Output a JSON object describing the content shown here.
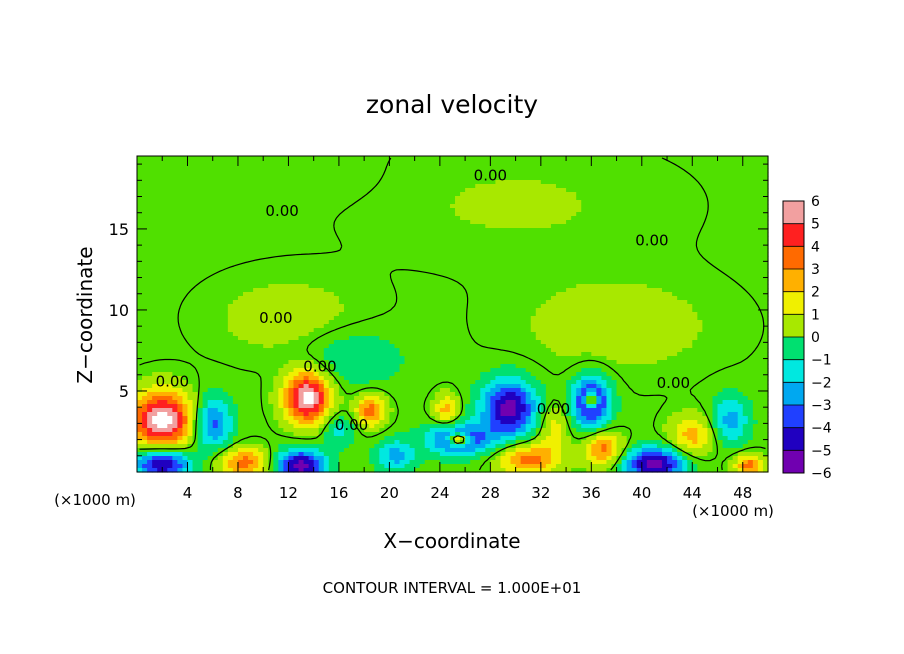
{
  "chart_data": {
    "type": "heatmap",
    "title": "zonal velocity",
    "xlabel": "X−coordinate",
    "ylabel": "Z−coordinate",
    "x_unit_left": "(×1000 m)",
    "x_unit_right": "(×1000 m)",
    "footer": "CONTOUR INTERVAL = 1.000E+01",
    "xlim": [
      0,
      50
    ],
    "ylim": [
      0,
      19.5
    ],
    "x_ticks": [
      4,
      8,
      12,
      16,
      20,
      24,
      28,
      32,
      36,
      40,
      44,
      48
    ],
    "x_tick_labels": [
      "4",
      "8",
      "12",
      "16",
      "20",
      "24",
      "28",
      "32",
      "36",
      "40",
      "44",
      "48"
    ],
    "y_ticks": [
      5,
      10,
      15
    ],
    "y_tick_labels": [
      "5",
      "10",
      "15"
    ],
    "colorbar": {
      "min": -6,
      "max": 6,
      "tick_labels": [
        "6",
        "5",
        "4",
        "3",
        "2",
        "1",
        "0",
        "−1",
        "−2",
        "−3",
        "−4",
        "−5",
        "−6"
      ],
      "colors": [
        "#f2a0a0",
        "#ff2020",
        "#ff6a00",
        "#ffb000",
        "#f0f000",
        "#a8e800",
        "#50e000",
        "#00e070",
        "#00e8e0",
        "#00a8f0",
        "#2040ff",
        "#2000c0",
        "#7000b0"
      ]
    },
    "contour_labels": [
      {
        "x": 28.0,
        "y": 18.3,
        "text": "0.00"
      },
      {
        "x": 11.5,
        "y": 16.1,
        "text": "0.00"
      },
      {
        "x": 40.8,
        "y": 14.3,
        "text": "0.00"
      },
      {
        "x": 11.0,
        "y": 9.5,
        "text": "0.00"
      },
      {
        "x": 2.8,
        "y": 5.6,
        "text": "0.00"
      },
      {
        "x": 14.5,
        "y": 6.5,
        "text": "0.00"
      },
      {
        "x": 17.0,
        "y": 2.9,
        "text": "0.00"
      },
      {
        "x": 33.0,
        "y": 3.9,
        "text": "0.00"
      },
      {
        "x": 42.5,
        "y": 5.5,
        "text": "0.00"
      }
    ],
    "field_features": [
      {
        "x": 2.0,
        "y": 3.2,
        "rx": 2.4,
        "ry": 1.8,
        "v": 7
      },
      {
        "x": 2.0,
        "y": 0.5,
        "rx": 2.2,
        "ry": 1.0,
        "v": -6
      },
      {
        "x": 13.5,
        "y": 4.6,
        "rx": 1.8,
        "ry": 1.6,
        "v": 7
      },
      {
        "x": 13.0,
        "y": 0.4,
        "rx": 2.0,
        "ry": 1.0,
        "v": -6
      },
      {
        "x": 6.0,
        "y": 3.0,
        "rx": 1.5,
        "ry": 1.6,
        "v": -4
      },
      {
        "x": 8.5,
        "y": 0.6,
        "rx": 2.0,
        "ry": 0.9,
        "v": 4
      },
      {
        "x": 18.5,
        "y": 3.8,
        "rx": 1.2,
        "ry": 1.0,
        "v": 4
      },
      {
        "x": 29.5,
        "y": 3.9,
        "rx": 2.2,
        "ry": 1.8,
        "v": -6
      },
      {
        "x": 25.5,
        "y": 2.0,
        "rx": 2.5,
        "ry": 1.0,
        "v": -5
      },
      {
        "x": 25.5,
        "y": 2.0,
        "rx": 0.8,
        "ry": 0.4,
        "v": 7
      },
      {
        "x": 24.5,
        "y": 3.8,
        "rx": 1.0,
        "ry": 1.0,
        "v": 3
      },
      {
        "x": 31.0,
        "y": 0.8,
        "rx": 2.5,
        "ry": 1.0,
        "v": 4
      },
      {
        "x": 36.0,
        "y": 4.3,
        "rx": 1.5,
        "ry": 1.6,
        "v": -6
      },
      {
        "x": 36.0,
        "y": 4.4,
        "rx": 0.5,
        "ry": 0.5,
        "v": 7
      },
      {
        "x": 37.0,
        "y": 1.4,
        "rx": 1.5,
        "ry": 1.1,
        "v": 4
      },
      {
        "x": 41.0,
        "y": 0.5,
        "rx": 2.5,
        "ry": 1.0,
        "v": -6
      },
      {
        "x": 44.0,
        "y": 2.2,
        "rx": 1.8,
        "ry": 1.3,
        "v": 3
      },
      {
        "x": 47.0,
        "y": 3.2,
        "rx": 1.5,
        "ry": 1.5,
        "v": -3
      },
      {
        "x": 48.5,
        "y": 0.4,
        "rx": 1.2,
        "ry": 0.7,
        "v": 4
      },
      {
        "x": 33.0,
        "y": 2.8,
        "rx": 1.2,
        "ry": 1.5,
        "v": 2
      },
      {
        "x": 20.5,
        "y": 1.0,
        "rx": 1.5,
        "ry": 1.0,
        "v": -3
      },
      {
        "x": 16.0,
        "y": 2.6,
        "rx": 1.2,
        "ry": 1.0,
        "v": -2
      },
      {
        "x": 12.0,
        "y": 9.5,
        "rx": 6.0,
        "ry": 2.5,
        "v": 1
      },
      {
        "x": 17.0,
        "y": 7.0,
        "rx": 4.0,
        "ry": 1.8,
        "v": -1.5
      },
      {
        "x": 38.0,
        "y": 9.0,
        "rx": 8.0,
        "ry": 3.0,
        "v": 1
      },
      {
        "x": 30.0,
        "y": 16.5,
        "rx": 12.0,
        "ry": 3.5,
        "v": 0.6
      },
      {
        "x": 10.0,
        "y": 18.0,
        "rx": 8.0,
        "ry": 1.5,
        "v": -0.4
      }
    ]
  }
}
